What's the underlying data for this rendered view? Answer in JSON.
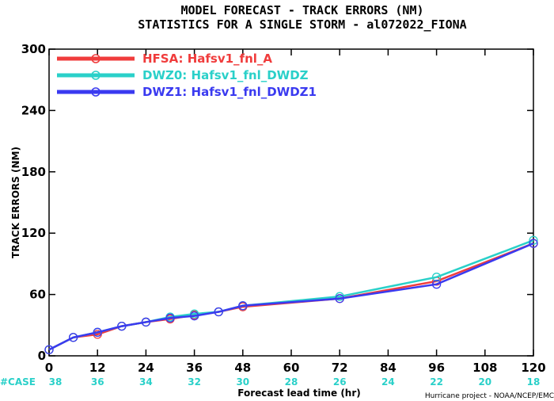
{
  "title_line1": "MODEL FORECAST - TRACK ERRORS (NM)",
  "title_line2": "STATISTICS FOR A SINGLE STORM - al072022_FIONA",
  "credit": "Hurricane project - NOAA/NCEP/EMC",
  "case_label": "#CASE",
  "colors": {
    "case_label": "#2ad0c9",
    "case_values": "#2ad0c9"
  },
  "chart_data": {
    "type": "line",
    "xlabel": "Forecast lead time (hr)",
    "ylabel": "TRACK ERRORS (NM)",
    "xlim": [
      0,
      120
    ],
    "ylim": [
      0,
      300
    ],
    "x_ticks": [
      0,
      12,
      24,
      36,
      48,
      60,
      72,
      84,
      96,
      108,
      120
    ],
    "y_ticks": [
      0,
      60,
      120,
      180,
      240,
      300
    ],
    "y_tick_labels": [
      "0",
      "60",
      "120",
      "180",
      "240",
      "300"
    ],
    "x": [
      0,
      6,
      12,
      18,
      24,
      30,
      36,
      42,
      48,
      72,
      96,
      120
    ],
    "cases": {
      "x": [
        0,
        12,
        24,
        36,
        48,
        60,
        72,
        84,
        96,
        108,
        120
      ],
      "counts": [
        38,
        36,
        34,
        32,
        30,
        28,
        26,
        24,
        22,
        20,
        18
      ]
    },
    "grid": false,
    "legend_position": "top-left",
    "series": [
      {
        "name": "HFSA: Hafsv1_fnl_A",
        "color": "#f03c3c",
        "values": [
          6,
          18,
          21,
          29,
          33,
          36,
          40,
          43,
          48,
          56,
          73,
          110
        ]
      },
      {
        "name": "DWZ0: Hafsv1_fnl_DWDZ",
        "color": "#2ad0c9",
        "values": [
          6,
          18,
          23,
          29,
          33,
          38,
          41,
          43,
          49,
          58,
          77,
          113
        ]
      },
      {
        "name": "DWZ1: Hafsv1_fnl_DWDZ1",
        "color": "#3a3af0",
        "values": [
          6,
          18,
          23,
          29,
          33,
          37,
          39,
          43,
          49,
          56,
          70,
          110
        ]
      }
    ]
  }
}
